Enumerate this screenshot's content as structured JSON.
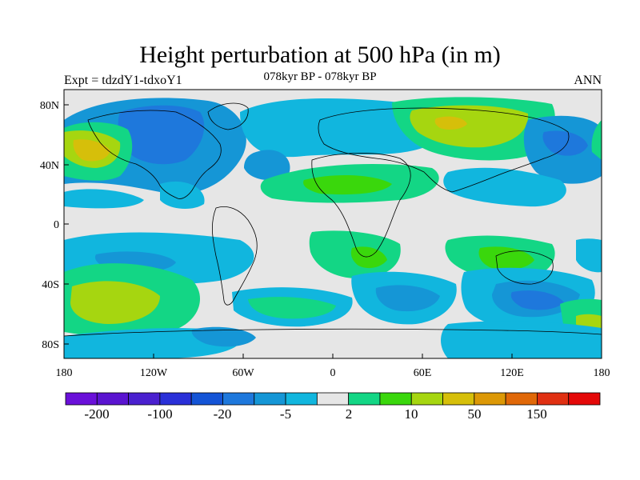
{
  "title": "Height perturbation at 500 hPa (in m)",
  "subtitle": "078kyr BP - 078kyr BP",
  "left_string": "Expt = tdzdY1-tdxoY1",
  "right_string": "ANN",
  "lat_ticks": [
    "80N",
    "40N",
    "0",
    "40S",
    "80S"
  ],
  "lon_ticks": [
    "180",
    "120W",
    "60W",
    "0",
    "60E",
    "120E",
    "180"
  ],
  "colorbar": {
    "colors": [
      "#6a10d9",
      "#5a14d0",
      "#4a20cf",
      "#2a30d8",
      "#1454d6",
      "#1e78dc",
      "#1596d6",
      "#11b6de",
      "#e6e6e6",
      "#13d685",
      "#3ad70c",
      "#a6d610",
      "#d6bf0a",
      "#dc9806",
      "#e06808",
      "#e03012",
      "#e40808"
    ],
    "labels": [
      "-200",
      "-100",
      "-20",
      "-5",
      "2",
      "10",
      "50",
      "150"
    ]
  },
  "palette": {
    "neutral": "#e6e6e6",
    "cyan": "#11b6de",
    "sky": "#1596d6",
    "blue": "#1e78dc",
    "green": "#13d685",
    "lime": "#a6d610",
    "bright_green": "#3ad70c",
    "yellow": "#d6bf0a"
  }
}
